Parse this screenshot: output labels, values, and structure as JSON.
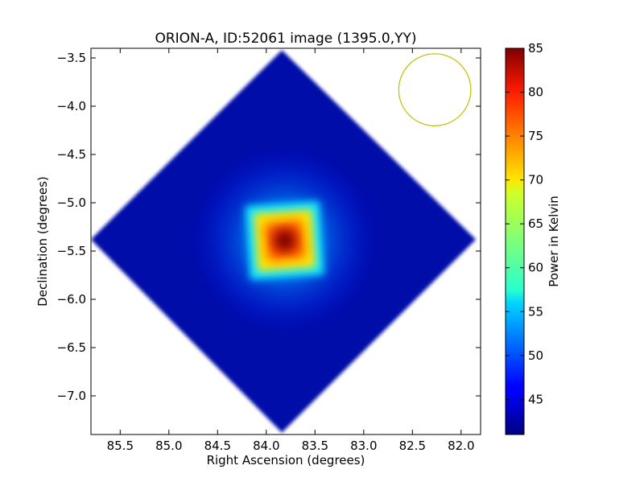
{
  "chart_data": {
    "type": "heatmap",
    "title": "ORION-A, ID:52061 image (1395.0,YY)",
    "xlabel": "Right Ascension (degrees)",
    "ylabel": "Declination (degrees)",
    "xlim": [
      85.8,
      81.8
    ],
    "ylim": [
      -7.4,
      -3.4
    ],
    "x_axis_inverted": true,
    "x_ticks": [
      85.5,
      85.0,
      84.5,
      84.0,
      83.5,
      83.0,
      82.5,
      82.0
    ],
    "x_tick_labels": [
      "85.5",
      "85.0",
      "84.5",
      "84.0",
      "83.5",
      "83.0",
      "82.5",
      "82.0"
    ],
    "y_ticks": [
      -3.5,
      -4.0,
      -4.5,
      -5.0,
      -5.5,
      -6.0,
      -6.5,
      -7.0
    ],
    "y_tick_labels": [
      "−3.5",
      "−4.0",
      "−4.5",
      "−5.0",
      "−5.5",
      "−6.0",
      "−6.5",
      "−7.0"
    ],
    "colorbar": {
      "label": "Power in Kelvin",
      "colormap": "jet",
      "range": [
        41,
        85
      ],
      "ticks": [
        45,
        50,
        55,
        60,
        65,
        70,
        75,
        80,
        85
      ],
      "tick_labels": [
        "45",
        "50",
        "55",
        "60",
        "65",
        "70",
        "75",
        "80",
        "85"
      ]
    },
    "footprint": {
      "shape": "diamond",
      "vertices_radec": [
        [
          83.84,
          -3.42
        ],
        [
          85.8,
          -5.38
        ],
        [
          83.84,
          -7.38
        ],
        [
          81.85,
          -5.38
        ]
      ],
      "background_level": 42.5
    },
    "hotspot": {
      "center_radec": [
        83.81,
        -5.39
      ],
      "peak_value": 85,
      "plateau_value": 70,
      "plateau_half_width_deg": 0.38,
      "plateau_radius": 0.39
    },
    "beam": {
      "center_radec": [
        82.27,
        -3.83
      ],
      "radius_deg": 0.37,
      "color": "#bfbf00"
    },
    "colors": {
      "axes": "#000000",
      "background": "#ffffff"
    }
  }
}
